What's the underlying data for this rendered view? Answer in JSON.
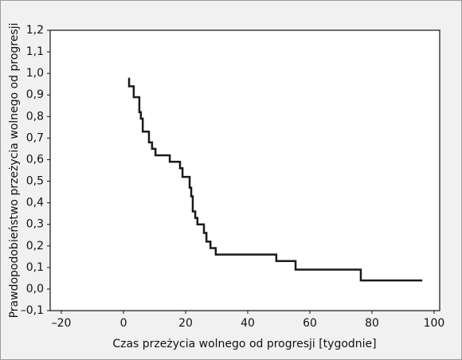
{
  "chart_data": {
    "type": "line",
    "x_label": "Czas przeżycia wolnego od progresji [tygodnie]",
    "y_label": "Prawdopodobieństwo przeżycia wolnego od progresji",
    "x": [
      1.8,
      1.8,
      3.3,
      3.3,
      5.1,
      5.1,
      5.6,
      5.6,
      6.2,
      6.2,
      8.2,
      8.2,
      9.2,
      9.2,
      10.3,
      10.3,
      14.9,
      14.9,
      18.2,
      18.2,
      19.0,
      19.0,
      21.3,
      21.3,
      21.8,
      21.8,
      22.3,
      22.3,
      23.1,
      23.1,
      23.8,
      23.8,
      25.9,
      25.9,
      26.7,
      26.7,
      28.0,
      28.0,
      29.7,
      29.7,
      49.2,
      49.2,
      55.4,
      55.4,
      76.4,
      76.4,
      96.2
    ],
    "values": [
      0.98,
      0.94,
      0.94,
      0.89,
      0.89,
      0.82,
      0.82,
      0.79,
      0.79,
      0.73,
      0.73,
      0.68,
      0.68,
      0.65,
      0.65,
      0.62,
      0.62,
      0.59,
      0.59,
      0.56,
      0.56,
      0.52,
      0.52,
      0.47,
      0.47,
      0.43,
      0.43,
      0.36,
      0.36,
      0.33,
      0.33,
      0.3,
      0.3,
      0.26,
      0.26,
      0.22,
      0.22,
      0.19,
      0.19,
      0.16,
      0.16,
      0.13,
      0.13,
      0.09,
      0.09,
      0.04,
      0.04
    ],
    "color": "#1a1a1a",
    "xlim": [
      -23.6,
      101.8
    ],
    "xticks": [
      {
        "value": -20,
        "label": "–20"
      },
      0,
      20,
      40,
      60,
      80,
      100
    ],
    "ylim": [
      -0.1,
      1.2
    ],
    "yticks": [
      {
        "value": -0.1,
        "label": "–0,1"
      },
      {
        "value": 0,
        "label": "0,0"
      },
      {
        "value": 0.1,
        "label": "0,1"
      },
      {
        "value": 0.2,
        "label": "0,2"
      },
      {
        "value": 0.3,
        "label": "0,3"
      },
      {
        "value": 0.4,
        "label": "0,4"
      },
      {
        "value": 0.5,
        "label": "0,5"
      },
      {
        "value": 0.6,
        "label": "0,6"
      },
      {
        "value": 0.7,
        "label": "0,7"
      },
      {
        "value": 0.8,
        "label": "0,8"
      },
      {
        "value": 0.9,
        "label": "0,9"
      },
      {
        "value": 1.0,
        "label": "1,0"
      },
      {
        "value": 1.1,
        "label": "1,1"
      },
      {
        "value": 1.2,
        "label": "1,2"
      }
    ],
    "grid": false
  }
}
